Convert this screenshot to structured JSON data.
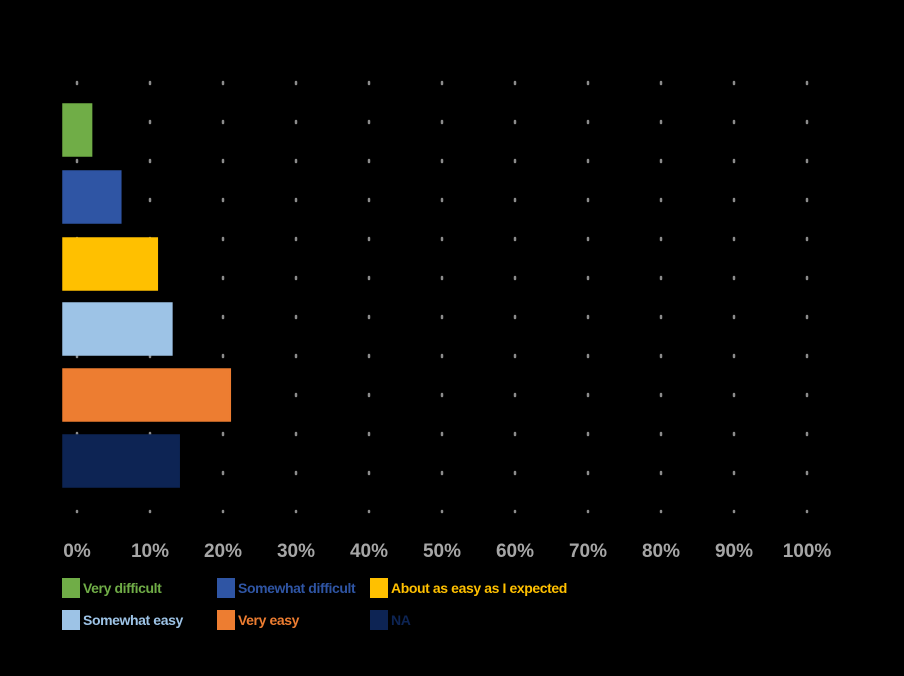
{
  "chart_data": {
    "type": "bar",
    "orientation": "horizontal",
    "categories": [
      "Very difficult",
      "Somewhat difficult",
      "About as easy as I expected",
      "Somewhat easy",
      "Very easy",
      "NA"
    ],
    "values": [
      2,
      6,
      11,
      13,
      21,
      14
    ],
    "value_unit": "percent",
    "colors": [
      "#70ad47",
      "#2f55a4",
      "#ffc000",
      "#9dc3e6",
      "#ed7d31",
      "#0d2454"
    ],
    "xlim": [
      0,
      100
    ],
    "xticks": [
      "0%",
      "10%",
      "20%",
      "30%",
      "40%",
      "50%",
      "60%",
      "70%",
      "80%",
      "90%",
      "100%"
    ],
    "grid": "dotted vertical",
    "legend_position": "bottom",
    "background": "#000000"
  },
  "legend": {
    "items": [
      {
        "label": "Very difficult",
        "color": "#70ad47"
      },
      {
        "label": "Somewhat difficult",
        "color": "#2f55a4"
      },
      {
        "label": "About as easy as I expected",
        "color": "#ffc000"
      },
      {
        "label": "Somewhat easy",
        "color": "#9dc3e6"
      },
      {
        "label": "Very easy",
        "color": "#ed7d31"
      },
      {
        "label": "NA",
        "color": "#0d2454"
      }
    ]
  }
}
